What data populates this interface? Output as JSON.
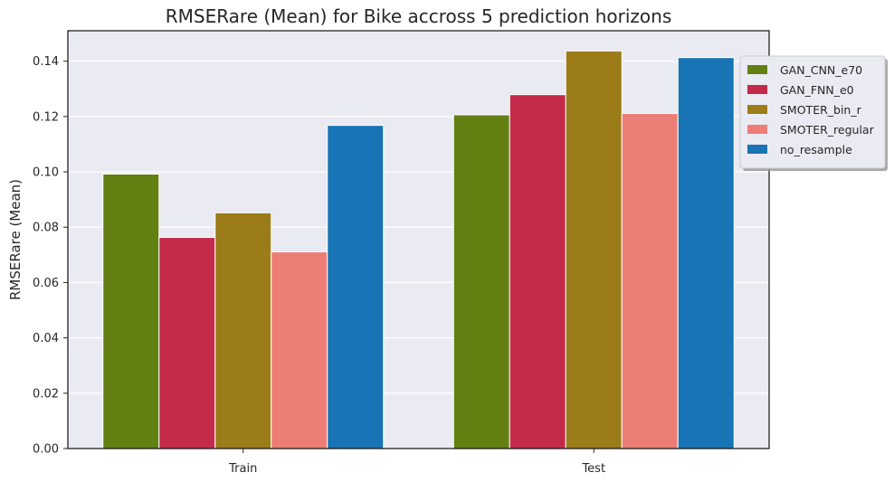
{
  "chart_data": {
    "type": "bar",
    "title": "RMSERare (Mean) for Bike accross 5 prediction horizons",
    "xlabel": "",
    "ylabel": "RMSERare (Mean)",
    "categories": [
      "Train",
      "Test"
    ],
    "ylim": [
      0,
      0.151
    ],
    "yticks": [
      0.0,
      0.02,
      0.04,
      0.06,
      0.08,
      0.1,
      0.12,
      0.14
    ],
    "ytick_labels": [
      "0.00",
      "0.02",
      "0.04",
      "0.06",
      "0.08",
      "0.10",
      "0.12",
      "0.14"
    ],
    "grid": true,
    "legend_position": "top-right",
    "series": [
      {
        "name": "GAN_CNN_e70",
        "color": "#638012",
        "values": [
          0.0992,
          0.1206
        ]
      },
      {
        "name": "GAN_FNN_e0",
        "color": "#c42b4b",
        "values": [
          0.0763,
          0.1279
        ]
      },
      {
        "name": "SMOTER_bin_r",
        "color": "#9b7c18",
        "values": [
          0.0852,
          0.1437
        ]
      },
      {
        "name": "SMOTER_regular",
        "color": "#ed7e76",
        "values": [
          0.0711,
          0.1211
        ]
      },
      {
        "name": "no_resample",
        "color": "#1874b4",
        "values": [
          0.1168,
          0.1413
        ]
      }
    ]
  }
}
